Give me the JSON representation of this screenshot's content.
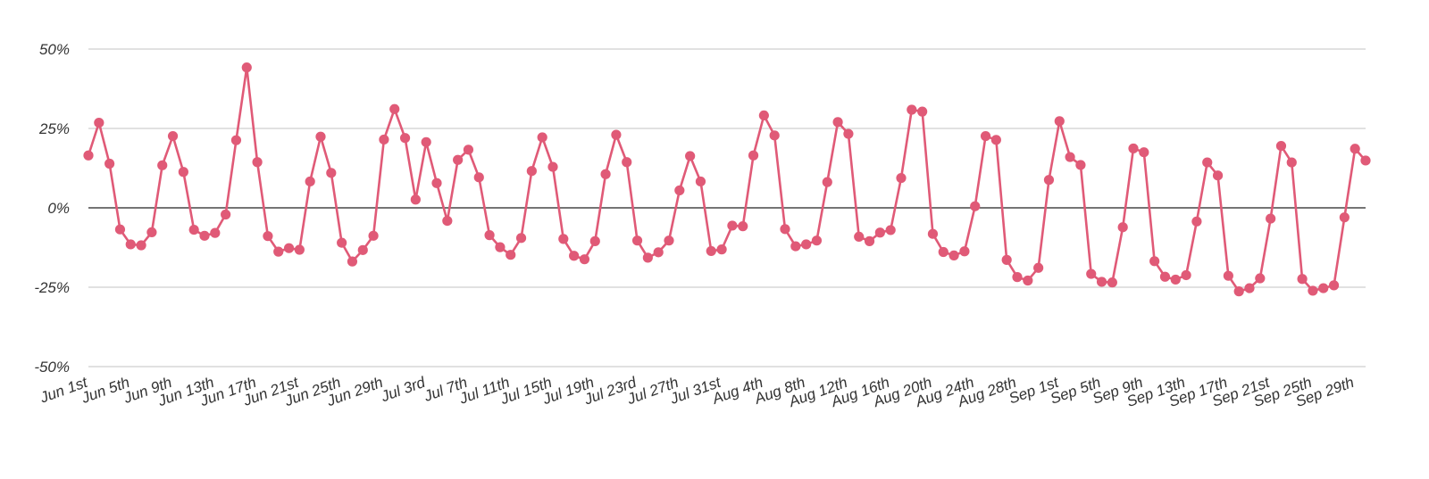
{
  "chart_data": {
    "type": "line",
    "title": "",
    "xlabel": "",
    "ylabel": "",
    "ylim": [
      -50,
      50
    ],
    "y_ticks": [
      {
        "value": 50,
        "label": "50%"
      },
      {
        "value": 25,
        "label": "25%"
      },
      {
        "value": 0,
        "label": "0%"
      },
      {
        "value": -25,
        "label": "-25%"
      },
      {
        "value": -50,
        "label": "-50%"
      }
    ],
    "x_tick_labels": [
      {
        "index": 0,
        "label": "Jun 1st"
      },
      {
        "index": 4,
        "label": "Jun 5th"
      },
      {
        "index": 8,
        "label": "Jun 9th"
      },
      {
        "index": 12,
        "label": "Jun 13th"
      },
      {
        "index": 16,
        "label": "Jun 17th"
      },
      {
        "index": 20,
        "label": "Jun 21st"
      },
      {
        "index": 24,
        "label": "Jun 25th"
      },
      {
        "index": 28,
        "label": "Jun 29th"
      },
      {
        "index": 32,
        "label": "Jul 3rd"
      },
      {
        "index": 36,
        "label": "Jul 7th"
      },
      {
        "index": 40,
        "label": "Jul 11th"
      },
      {
        "index": 44,
        "label": "Jul 15th"
      },
      {
        "index": 48,
        "label": "Jul 19th"
      },
      {
        "index": 52,
        "label": "Jul 23rd"
      },
      {
        "index": 56,
        "label": "Jul 27th"
      },
      {
        "index": 60,
        "label": "Jul 31st"
      },
      {
        "index": 64,
        "label": "Aug 4th"
      },
      {
        "index": 68,
        "label": "Aug 8th"
      },
      {
        "index": 72,
        "label": "Aug 12th"
      },
      {
        "index": 76,
        "label": "Aug 16th"
      },
      {
        "index": 80,
        "label": "Aug 20th"
      },
      {
        "index": 84,
        "label": "Aug 24th"
      },
      {
        "index": 88,
        "label": "Aug 28th"
      },
      {
        "index": 92,
        "label": "Sep 1st"
      },
      {
        "index": 96,
        "label": "Sep 5th"
      },
      {
        "index": 100,
        "label": "Sep 9th"
      },
      {
        "index": 104,
        "label": "Sep 13th"
      },
      {
        "index": 108,
        "label": "Sep 17th"
      },
      {
        "index": 112,
        "label": "Sep 21st"
      },
      {
        "index": 116,
        "label": "Sep 25th"
      },
      {
        "index": 120,
        "label": "Sep 29th"
      }
    ],
    "grid": true,
    "legend": "none",
    "series": [
      {
        "color": "#e05a77",
        "values": [
          16.5,
          26.8,
          13.9,
          -6.8,
          -11.5,
          -11.8,
          -7.7,
          13.4,
          22.6,
          11.3,
          -6.9,
          -8.8,
          -7.9,
          -2.1,
          21.3,
          44.2,
          14.4,
          -8.9,
          -13.8,
          -12.7,
          -13.2,
          8.3,
          22.4,
          11.0,
          -11.0,
          -16.9,
          -13.3,
          -8.8,
          21.5,
          31.1,
          22.0,
          2.6,
          20.7,
          7.8,
          -4.1,
          15.1,
          18.3,
          9.6,
          -8.6,
          -12.4,
          -14.8,
          -9.5,
          11.6,
          22.2,
          12.9,
          -9.8,
          -15.1,
          -16.2,
          -10.5,
          10.6,
          23.0,
          14.4,
          -10.3,
          -15.7,
          -14.0,
          -10.3,
          5.5,
          16.3,
          8.3,
          -13.6,
          -13.1,
          -5.6,
          -5.8,
          16.5,
          29.1,
          22.8,
          -6.7,
          -12.1,
          -11.5,
          -10.3,
          8.1,
          27.0,
          23.3,
          -9.1,
          -10.5,
          -7.8,
          -7.0,
          9.4,
          30.9,
          30.3,
          -8.2,
          -13.9,
          -15.0,
          -13.7,
          0.5,
          22.6,
          21.4,
          -16.4,
          -21.8,
          -22.9,
          -18.9,
          8.8,
          27.3,
          16.0,
          13.5,
          -20.8,
          -23.3,
          -23.5,
          -6.1,
          18.7,
          17.5,
          -16.8,
          -21.7,
          -22.6,
          -21.2,
          -4.3,
          14.3,
          10.2,
          -21.4,
          -26.3,
          -25.3,
          -22.2,
          -3.4,
          19.5,
          14.3,
          -22.4,
          -26.1,
          -25.3,
          -24.4,
          -3.0,
          18.6,
          14.9
        ]
      }
    ]
  }
}
